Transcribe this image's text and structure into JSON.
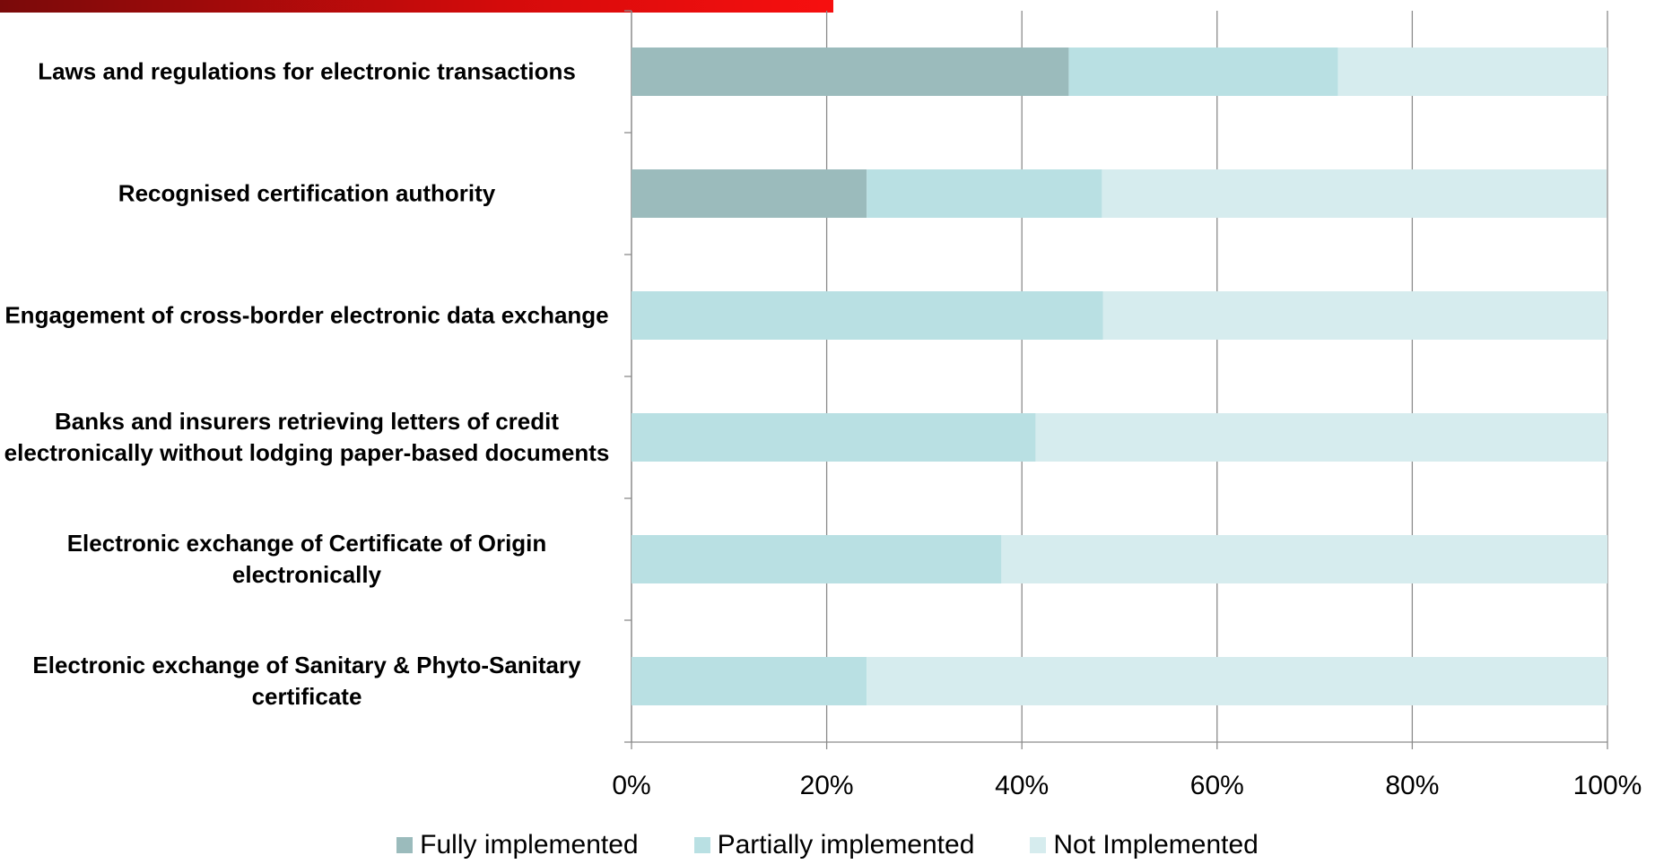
{
  "chart_data": {
    "type": "stacked_barh",
    "categories": [
      "Laws and regulations for electronic transactions",
      "Recognised certification authority",
      "Engagement of cross-border electronic data exchange",
      "Banks and insurers retrieving letters of credit electronically without lodging paper-based documents",
      "Electronic exchange of Certificate of Origin electronically",
      "Electronic exchange of Sanitary & Phyto-Sanitary certificate"
    ],
    "series": [
      {
        "name": "Fully implemented",
        "color": "#9bbbbc",
        "values": [
          44.8,
          24.1,
          0,
          0,
          0,
          0
        ]
      },
      {
        "name": "Partially implemented",
        "color": "#b9e0e3",
        "values": [
          27.6,
          24.1,
          48.3,
          41.4,
          37.9,
          24.1
        ]
      },
      {
        "name": "Not Implemented",
        "color": "#d6ecee",
        "values": [
          27.6,
          51.7,
          51.7,
          58.6,
          62.1,
          75.9
        ]
      }
    ],
    "xlim": [
      0,
      100
    ],
    "xticks": [
      {
        "value": 0,
        "label": "0%"
      },
      {
        "value": 20,
        "label": "20%"
      },
      {
        "value": 40,
        "label": "40%"
      },
      {
        "value": 60,
        "label": "60%"
      },
      {
        "value": 80,
        "label": "80%"
      },
      {
        "value": 100,
        "label": "100%"
      }
    ],
    "grid": true,
    "legend": "bottom"
  }
}
